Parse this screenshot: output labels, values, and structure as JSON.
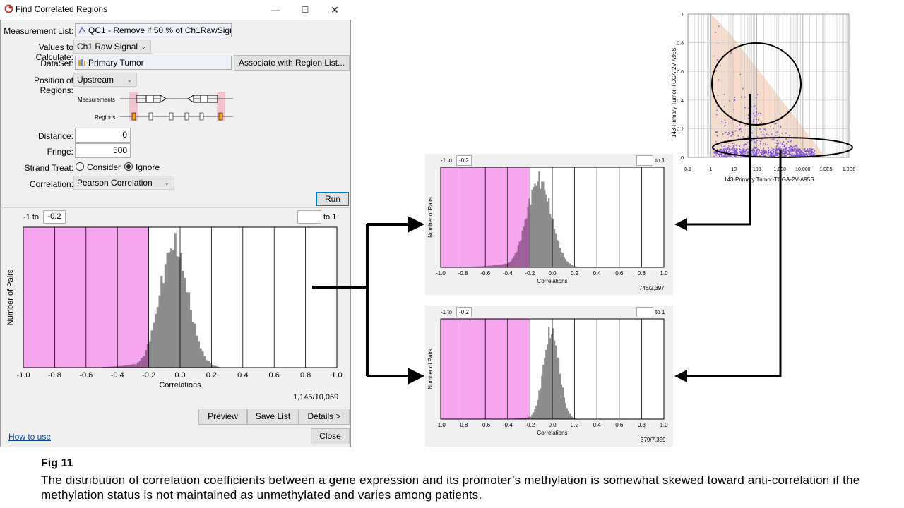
{
  "dialog": {
    "title": "Find Correlated Regions",
    "measurement_list_label": "Measurement List:",
    "measurement_list_value": "QC1 - Remove if 50 % of Ch1RawSignal..",
    "values_label": "Values to Calculate:",
    "values_value": "Ch1 Raw Signal",
    "dataset_label": "DataSet:",
    "dataset_value": "Primary Tumor",
    "associate_button": "Associate with Region List...",
    "position_label": "Position of Regions:",
    "position_value": "Upstream",
    "diagram_measurements": "Measurements",
    "diagram_regions": "Regions",
    "distance_label": "Distance:",
    "distance_value": "0",
    "fringe_label": "Fringe:",
    "fringe_value": "500",
    "strand_label": "Strand Treat:",
    "strand_consider": "Consider",
    "strand_ignore": "Ignore",
    "correlation_label": "Correlation:",
    "correlation_value": "Pearson Correlation",
    "run_button": "Run",
    "range_from_prefix": "-1 to",
    "range_from_value": "-0.2",
    "range_to_suffix": "to 1",
    "y_label": "Number of Pairs",
    "x_label": "Correlations",
    "count": "1,145/10,069",
    "preview_button": "Preview",
    "save_button": "Save List",
    "details_button": "Details >",
    "how_to_use": "How to use",
    "close_button": "Close"
  },
  "hist_top": {
    "range_from_prefix": "-1 to",
    "range_from_value": "-0.2",
    "range_to_suffix": "to 1",
    "y_label": "Number of Pairs",
    "x_label": "Correlations",
    "count": "746/2,397"
  },
  "hist_bottom": {
    "range_from_prefix": "-1 to",
    "range_from_value": "-0.2",
    "range_to_suffix": "to 1",
    "y_label": "Number of Pairs",
    "x_label": "Correlations",
    "count": "379/7,359"
  },
  "scatter": {
    "x_label": "143-Primary Tumor-TCGA-2V-A95S",
    "y_label": "143-Primary Tumor-TCGA-2V-A95S"
  },
  "caption": {
    "title": "Fig 11",
    "body": "The distribution of correlation coefficients between a gene expression and its promoter’s methylation is somewhat skewed toward anti-correlation if the methylation status is not maintained as unmethylated and varies among patients."
  },
  "chart_data": [
    {
      "type": "bar",
      "name": "main-histogram",
      "x": [
        -1.0,
        -0.8,
        -0.6,
        -0.4,
        -0.2,
        0.0,
        0.2,
        0.4,
        0.6,
        0.8,
        1.0
      ],
      "xtick_labels": [
        "-1.0",
        "-0.8",
        "-0.6",
        "-0.4",
        "-0.2",
        "0.0",
        "0.2",
        "0.4",
        "0.6",
        "0.8",
        "1.0"
      ],
      "distribution": {
        "center": -0.04,
        "spread": 0.09,
        "left_tail": 0.12
      },
      "selected_range": [
        -1.0,
        -0.2
      ],
      "xlabel": "Correlations",
      "ylabel": "Number of Pairs"
    },
    {
      "type": "bar",
      "name": "top-histogram",
      "xtick_labels": [
        "-1.0",
        "-0.8",
        "-0.6",
        "-0.4",
        "-0.2",
        "0.0",
        "0.2",
        "0.4",
        "0.6",
        "0.8",
        "1.0"
      ],
      "distribution": {
        "center": -0.12,
        "spread": 0.11,
        "left_tail": 0.18
      },
      "selected_range": [
        -1.0,
        -0.2
      ],
      "xlabel": "Correlations",
      "ylabel": "Number of Pairs"
    },
    {
      "type": "bar",
      "name": "bottom-histogram",
      "xtick_labels": [
        "-1.0",
        "-0.8",
        "-0.6",
        "-0.4",
        "-0.2",
        "0.0",
        "0.2",
        "0.4",
        "0.6",
        "0.8",
        "1.0"
      ],
      "distribution": {
        "center": -0.01,
        "spread": 0.07,
        "left_tail": 0.09
      },
      "selected_range": [
        -1.0,
        -0.2
      ],
      "xlabel": "Correlations",
      "ylabel": "Number of Pairs"
    },
    {
      "type": "scatter",
      "name": "expression-vs-methylation",
      "xscale": "log",
      "xtick_labels": [
        "0.1",
        "1",
        "10",
        "100",
        "1,000",
        "10,000",
        "1.0E5",
        "1.0E6"
      ],
      "ytick_labels": [
        "0",
        "0.2",
        "0.4",
        "0.6",
        "0.8",
        "1"
      ],
      "ylim": [
        0,
        1
      ],
      "xlabel": "143-Primary Tumor-TCGA-2V-A95S",
      "ylabel": "143-Primary Tumor-TCGA-2V-A95S"
    }
  ],
  "colors": {
    "selection": "#f5a6ee",
    "overlap": "#9c5f98",
    "bars": "#8c8c8c",
    "points": "#7d54d6",
    "scatter_band": "#f8dccb"
  }
}
